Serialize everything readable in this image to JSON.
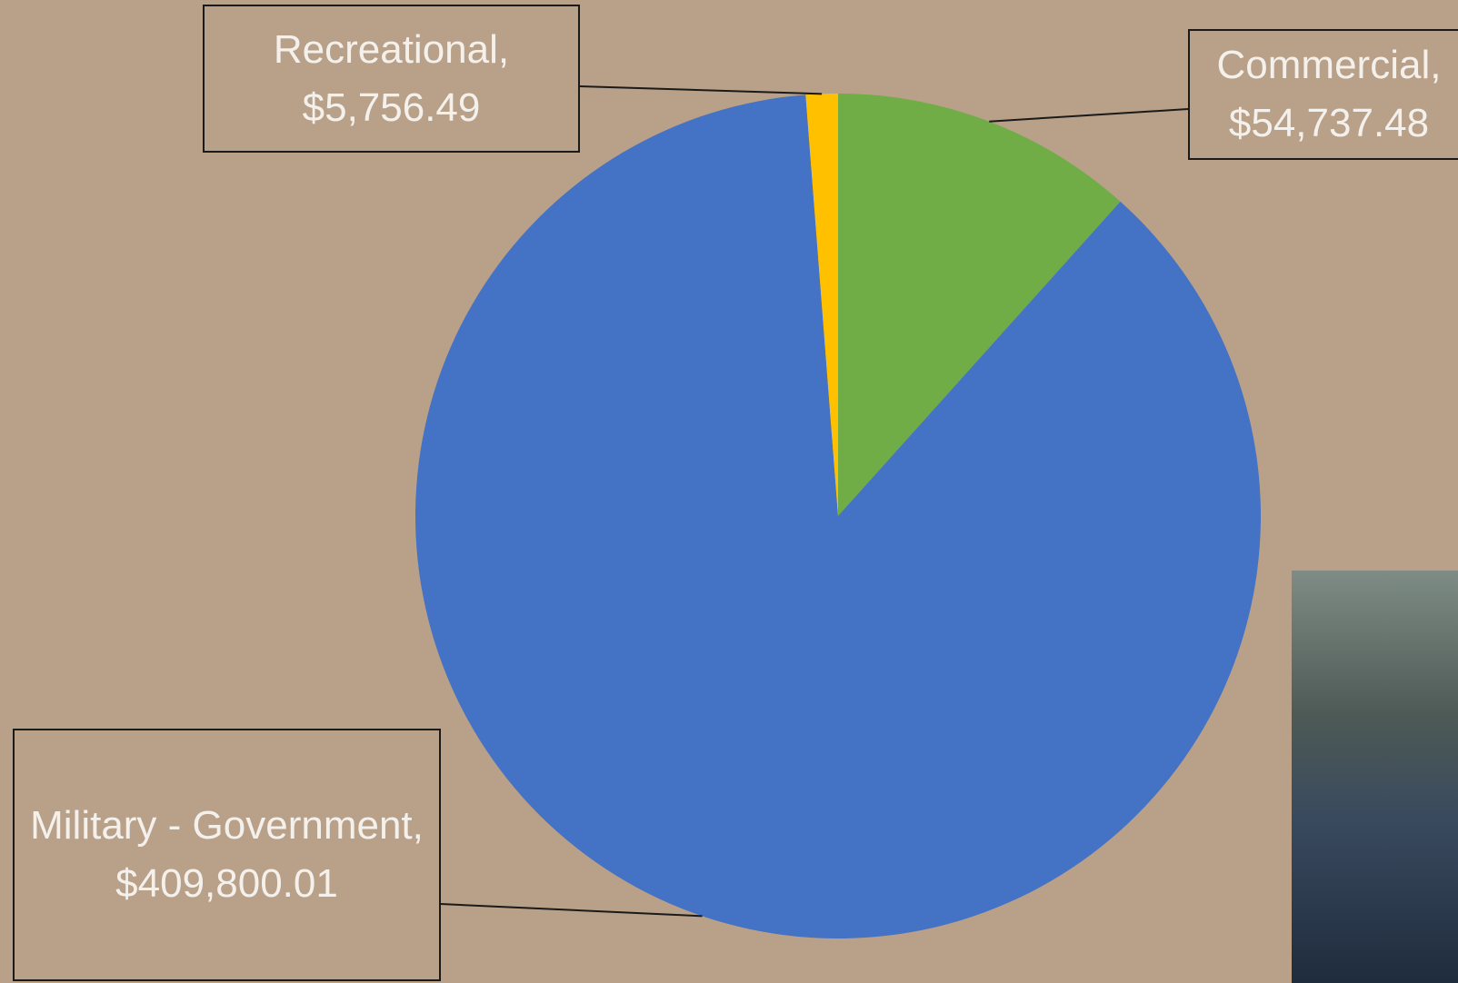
{
  "chart_data": {
    "type": "pie",
    "values": [
      54737.48,
      409800.01,
      5756.49
    ],
    "value_labels": [
      "Commercial, $54,737.48",
      "Military - Government, $409,800.01",
      "Recreational, $5,756.49"
    ],
    "colors": [
      "#70ad47",
      "#4472c4",
      "#ffc000"
    ]
  }
}
